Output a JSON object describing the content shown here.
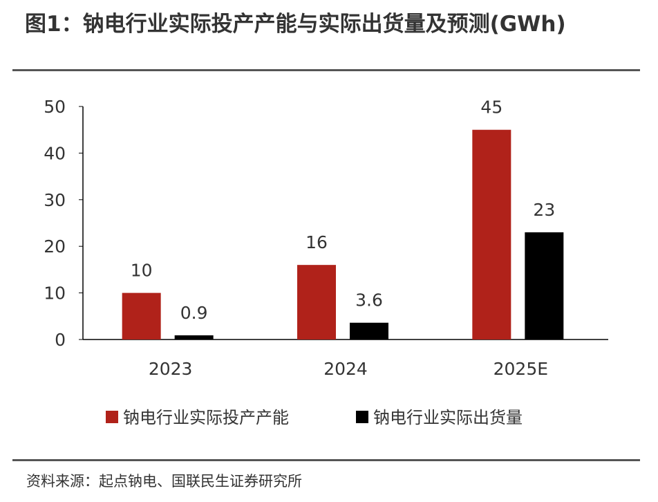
{
  "title": "图1：钠电行业实际投产产能与实际出货量及预测(GWh)",
  "source": "资料来源：起点钠电、国联民生证券研究所",
  "chart_data": {
    "type": "bar",
    "categories": [
      "2023",
      "2024",
      "2025E"
    ],
    "series": [
      {
        "name": "钠电行业实际投产产能",
        "values": [
          10,
          16,
          45
        ],
        "color": "#B0221A"
      },
      {
        "name": "钠电行业实际出货量",
        "values": [
          0.9,
          3.6,
          23
        ],
        "color": "#000000"
      }
    ],
    "ylim": [
      0,
      50
    ],
    "yticks": [
      0,
      10,
      20,
      30,
      40,
      50
    ],
    "legend": "bottom"
  }
}
